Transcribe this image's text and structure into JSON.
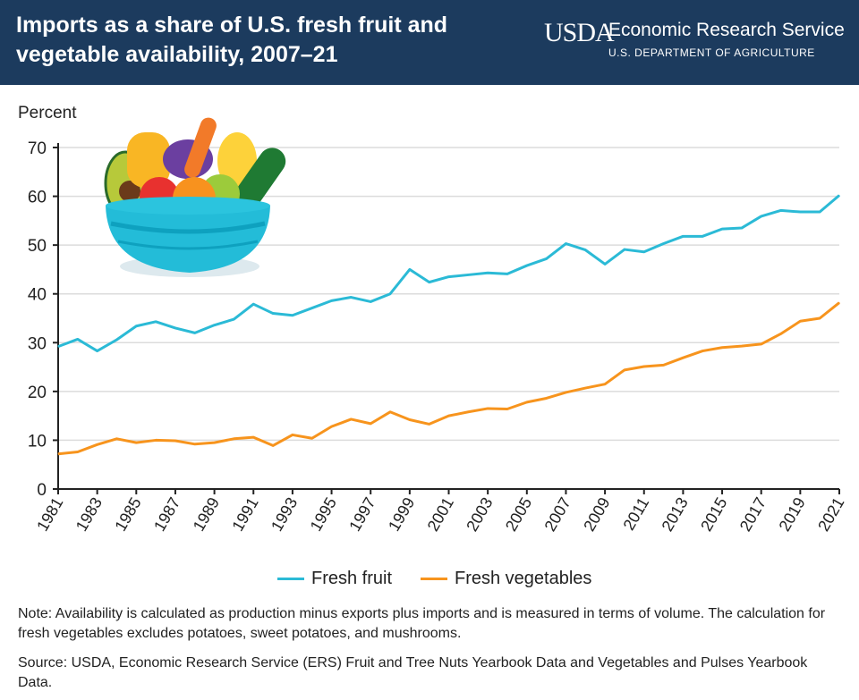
{
  "header": {
    "title": "Imports as a share of U.S. fresh fruit and vegetable availability, 2007–21",
    "logo_text": "USDA",
    "agency": "Economic Research Service",
    "department": "U.S. DEPARTMENT OF AGRICULTURE"
  },
  "chart_data": {
    "type": "line",
    "title": "Imports as a share of U.S. fresh fruit and vegetable availability, 2007–21",
    "ylabel": "Percent",
    "xlabel": "",
    "ylim": [
      0,
      70
    ],
    "yticks": [
      0,
      10,
      20,
      30,
      40,
      50,
      60,
      70
    ],
    "xlim": [
      1981,
      2021
    ],
    "xticks": [
      1981,
      1983,
      1985,
      1987,
      1989,
      1991,
      1993,
      1995,
      1997,
      1999,
      2001,
      2003,
      2005,
      2007,
      2009,
      2011,
      2013,
      2015,
      2017,
      2019,
      2021
    ],
    "grid": true,
    "legend_position": "bottom",
    "x": [
      1981,
      1982,
      1983,
      1984,
      1985,
      1986,
      1987,
      1988,
      1989,
      1990,
      1991,
      1992,
      1993,
      1994,
      1995,
      1996,
      1997,
      1998,
      1999,
      2000,
      2001,
      2002,
      2003,
      2004,
      2005,
      2006,
      2007,
      2008,
      2009,
      2010,
      2011,
      2012,
      2013,
      2014,
      2015,
      2016,
      2017,
      2018,
      2019,
      2020,
      2021
    ],
    "series": [
      {
        "name": "Fresh fruit",
        "color": "#2bbad6",
        "values": [
          29.2,
          30.7,
          28.3,
          30.6,
          33.4,
          34.3,
          33.0,
          32.0,
          33.6,
          34.8,
          37.9,
          36.0,
          35.6,
          37.1,
          38.6,
          39.3,
          38.4,
          40.0,
          45.0,
          42.4,
          43.5,
          43.9,
          44.3,
          44.1,
          45.8,
          47.2,
          50.3,
          49.0,
          46.1,
          49.1,
          48.6,
          50.3,
          51.8,
          51.8,
          53.3,
          53.5,
          55.9,
          57.1,
          56.8,
          56.8,
          60.2
        ]
      },
      {
        "name": "Fresh vegetables",
        "color": "#f7941d",
        "values": [
          7.2,
          7.6,
          9.1,
          10.3,
          9.5,
          10.0,
          9.9,
          9.2,
          9.5,
          10.3,
          10.6,
          8.9,
          11.1,
          10.4,
          12.8,
          14.3,
          13.4,
          15.8,
          14.2,
          13.3,
          15.0,
          15.8,
          16.5,
          16.4,
          17.8,
          18.6,
          19.8,
          20.7,
          21.5,
          24.4,
          25.1,
          25.4,
          26.9,
          28.3,
          29.0,
          29.3,
          29.7,
          31.8,
          34.4,
          35.0,
          38.2
        ]
      }
    ]
  },
  "notes": {
    "note": "Note: Availability is calculated as production minus exports plus imports and is measured in terms of volume. The calculation for fresh vegetables excludes potatoes, sweet potatoes, and mushrooms.",
    "source": "Source: USDA, Economic Research Service (ERS) Fruit and Tree Nuts Yearbook Data and Vegetables and Pulses Yearbook Data."
  }
}
